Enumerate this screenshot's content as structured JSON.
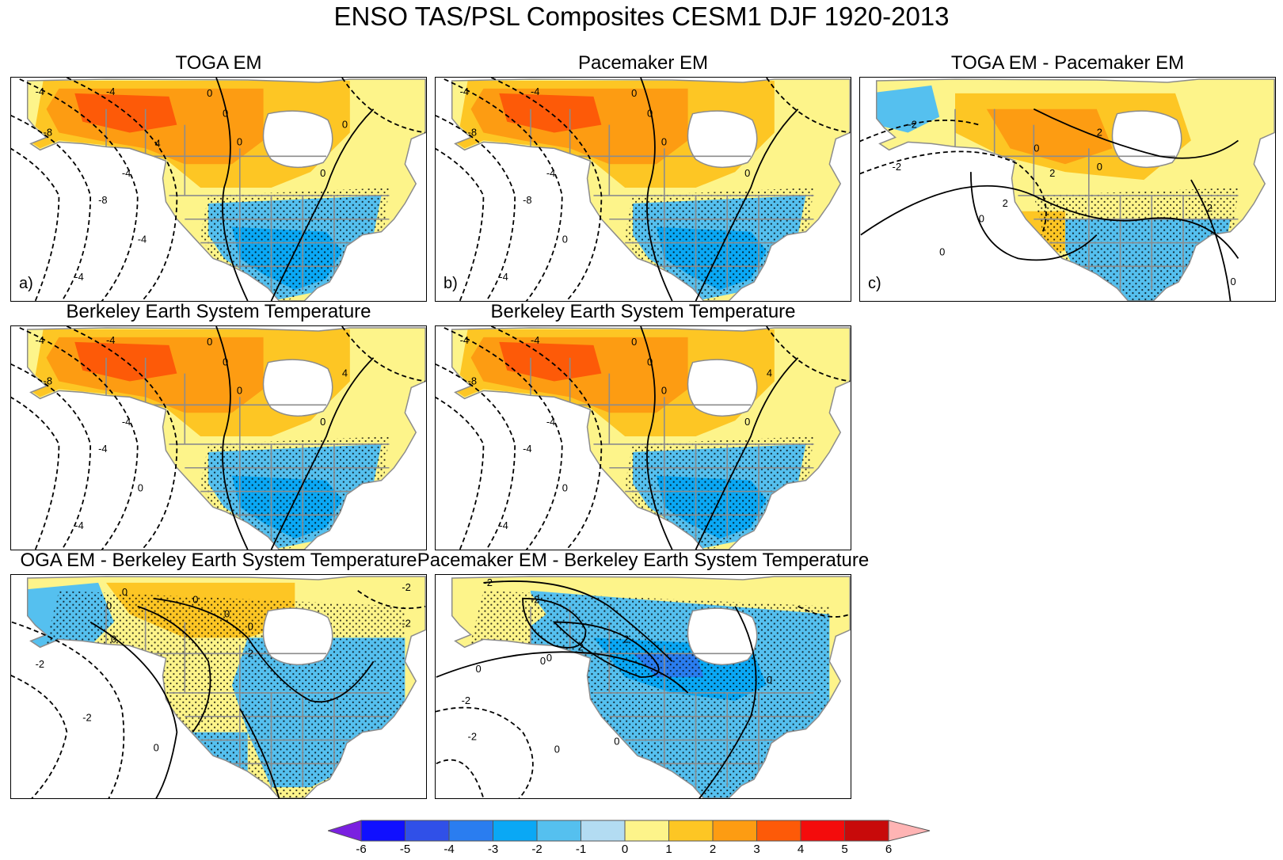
{
  "title": "ENSO TAS/PSL Composites CESM1 DJF 1920-2013",
  "panels": [
    {
      "title": "TOGA EM",
      "label": "a)",
      "variant": "warm-north",
      "contour_labels": [
        "-4",
        "-4",
        "-8",
        "-8",
        "-4",
        "-4",
        "-4",
        "0",
        "0",
        "0",
        "0",
        "0",
        "4"
      ]
    },
    {
      "title": "Pacemaker EM",
      "label": "b)",
      "variant": "warm-north",
      "contour_labels": [
        "-4",
        "-4",
        "-8",
        "-8",
        "-4",
        "-4",
        "0",
        "0",
        "0",
        "0",
        "0"
      ]
    },
    {
      "title": "TOGA EM - Pacemaker EM",
      "label": "c)",
      "variant": "diff-c",
      "contour_labels": [
        "-2",
        "-2",
        "0",
        "0",
        "0",
        "0",
        "2",
        "2",
        "2",
        "2",
        "0"
      ]
    },
    {
      "title": "Berkeley Earth System Temperature",
      "label": "",
      "variant": "warm-north",
      "contour_labels": [
        "-4",
        "-4",
        "-8",
        "-4",
        "-4",
        "-4",
        "0",
        "0",
        "0",
        "0",
        "0",
        "4"
      ]
    },
    {
      "title": "Berkeley Earth System Temperature",
      "label": "",
      "variant": "warm-north",
      "contour_labels": [
        "-4",
        "-4",
        "-8",
        "-4",
        "-4",
        "-4",
        "0",
        "0",
        "0",
        "0",
        "0",
        "4"
      ]
    },
    {
      "title": "OGA EM - Berkeley Earth System Temperature",
      "label": "",
      "variant": "diff-e",
      "contour_labels": [
        "0",
        "0",
        "0",
        "0",
        "-2",
        "-2",
        "0",
        "0",
        "2",
        "-2",
        "-2",
        "0"
      ]
    },
    {
      "title": "Pacemaker EM - Berkeley Earth System Temperature",
      "label": "",
      "variant": "diff-f",
      "contour_labels": [
        "-2",
        "-2",
        "0",
        "0",
        "-2",
        "2",
        "2",
        "0",
        "0",
        "-2",
        "0",
        "0"
      ]
    }
  ],
  "colorbar": {
    "ticks": [
      "-6",
      "-5",
      "-4",
      "-3",
      "-2",
      "-1",
      "0",
      "1",
      "2",
      "3",
      "4",
      "5",
      "6"
    ],
    "colors": [
      "#7a20e0",
      "#1010ff",
      "#3050e8",
      "#2a7df0",
      "#0aa8f5",
      "#55c0ef",
      "#b3dcf2",
      "#fdf48a",
      "#fdc624",
      "#fd9c12",
      "#fd5a08",
      "#f40c0c",
      "#c80a0a",
      "#ffb4b4"
    ]
  },
  "colors": {
    "land_outline": "#8c8c8c",
    "contour": "#000000",
    "stipple": "#000000"
  }
}
